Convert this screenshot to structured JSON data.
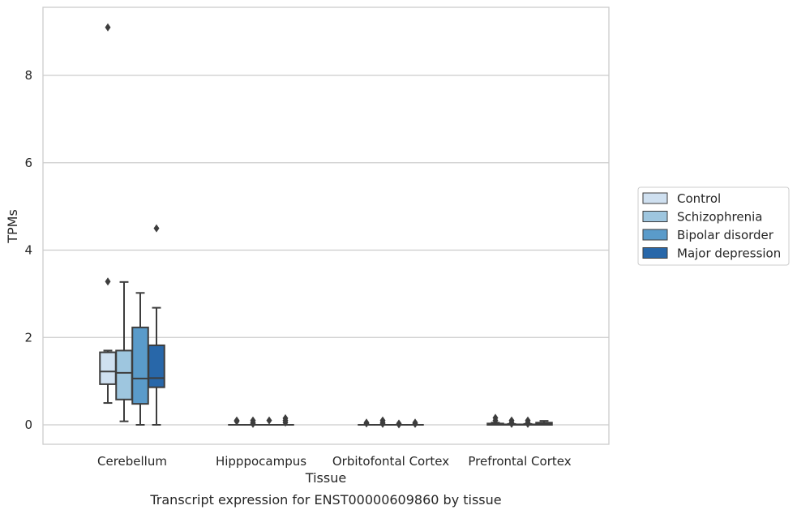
{
  "chart_data": {
    "type": "box",
    "xlabel": "Tissue",
    "ylabel": "TPMs",
    "caption": "Transcript expression for ENST00000609860 by tissue",
    "ylim": [
      -0.45,
      9.6
    ],
    "yticks": [
      0,
      2,
      4,
      6,
      8
    ],
    "ytick_labels": [
      "0",
      "2",
      "4",
      "6",
      "8"
    ],
    "grid": "horizontal",
    "legend_placement": "right",
    "categories": [
      "Cerebellum",
      "Hipppocampus",
      "Orbitofontal Cortex",
      "Prefrontal Cortex"
    ],
    "series": [
      {
        "name": "Control",
        "color": "#cfe0f0",
        "boxes": [
          {
            "whisker_low": 0.5,
            "q1": 0.93,
            "median": 1.22,
            "q3": 1.66,
            "whisker_high": 1.7,
            "outliers": [
              3.28,
              9.1
            ]
          },
          {
            "whisker_low": 0.0,
            "q1": 0.0,
            "median": 0.0,
            "q3": 0.0,
            "whisker_high": 0.0,
            "outliers": [
              0.1,
              0.08
            ]
          },
          {
            "whisker_low": 0.0,
            "q1": 0.0,
            "median": 0.0,
            "q3": 0.0,
            "whisker_high": 0.0,
            "outliers": [
              0.05,
              0.03
            ]
          },
          {
            "whisker_low": 0.0,
            "q1": 0.0,
            "median": 0.01,
            "q3": 0.03,
            "whisker_high": 0.05,
            "outliers": [
              0.16,
              0.1
            ]
          }
        ]
      },
      {
        "name": "Schizophrenia",
        "color": "#9ec6df",
        "boxes": [
          {
            "whisker_low": 0.08,
            "q1": 0.58,
            "median": 1.19,
            "q3": 1.7,
            "whisker_high": 3.27,
            "outliers": []
          },
          {
            "whisker_low": 0.0,
            "q1": 0.0,
            "median": 0.0,
            "q3": 0.0,
            "whisker_high": 0.0,
            "outliers": [
              0.1,
              0.05,
              0.02
            ]
          },
          {
            "whisker_low": 0.0,
            "q1": 0.0,
            "median": 0.0,
            "q3": 0.0,
            "whisker_high": 0.0,
            "outliers": [
              0.1,
              0.05,
              0.02
            ]
          },
          {
            "whisker_low": 0.0,
            "q1": 0.0,
            "median": 0.0,
            "q3": 0.01,
            "whisker_high": 0.02,
            "outliers": [
              0.1,
              0.05,
              0.02
            ]
          }
        ]
      },
      {
        "name": "Bipolar disorder",
        "color": "#5a9bca",
        "boxes": [
          {
            "whisker_low": 0.0,
            "q1": 0.48,
            "median": 1.06,
            "q3": 2.23,
            "whisker_high": 3.02,
            "outliers": []
          },
          {
            "whisker_low": 0.0,
            "q1": 0.0,
            "median": 0.0,
            "q3": 0.0,
            "whisker_high": 0.0,
            "outliers": [
              0.1
            ]
          },
          {
            "whisker_low": 0.0,
            "q1": 0.0,
            "median": 0.0,
            "q3": 0.0,
            "whisker_high": 0.0,
            "outliers": [
              0.03,
              0.01
            ]
          },
          {
            "whisker_low": 0.0,
            "q1": 0.0,
            "median": 0.0,
            "q3": 0.01,
            "whisker_high": 0.02,
            "outliers": [
              0.1,
              0.05,
              0.02
            ]
          }
        ]
      },
      {
        "name": "Major depression",
        "color": "#2867a9",
        "boxes": [
          {
            "whisker_low": 0.0,
            "q1": 0.86,
            "median": 1.07,
            "q3": 1.82,
            "whisker_high": 2.68,
            "outliers": [
              4.5
            ]
          },
          {
            "whisker_low": 0.0,
            "q1": 0.0,
            "median": 0.0,
            "q3": 0.0,
            "whisker_high": 0.0,
            "outliers": [
              0.15,
              0.1,
              0.05
            ]
          },
          {
            "whisker_low": 0.0,
            "q1": 0.0,
            "median": 0.0,
            "q3": 0.0,
            "whisker_high": 0.0,
            "outliers": [
              0.05,
              0.02
            ]
          },
          {
            "whisker_low": 0.0,
            "q1": 0.0,
            "median": 0.02,
            "q3": 0.05,
            "whisker_high": 0.09,
            "outliers": []
          }
        ]
      }
    ]
  }
}
